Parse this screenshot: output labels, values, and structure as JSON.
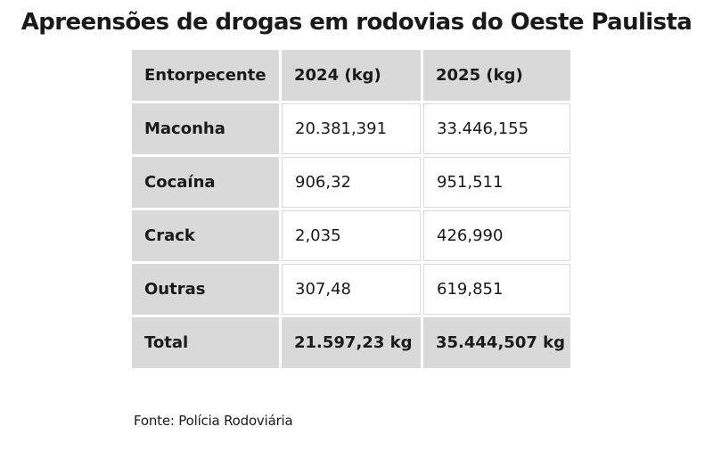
{
  "title": "Apreensões de drogas em rodovias do Oeste Paulista",
  "table": {
    "headers": [
      "Entorpecente",
      "2024 (kg)",
      "2025 (kg)"
    ],
    "rows": [
      [
        "Maconha",
        "20.381,391",
        "33.446,155"
      ],
      [
        "Cocaína",
        "906,32",
        "951,511"
      ],
      [
        "Crack",
        "2,035",
        "426,990"
      ],
      [
        "Outras",
        "307,48",
        "619,851"
      ]
    ],
    "total": [
      "Total",
      "21.597,23 kg",
      "35.444,507 kg"
    ]
  },
  "source": "Fonte: Polícia Rodoviária",
  "colors": {
    "header_bg": "#d9d9d9",
    "cell_bg": "#ffffff",
    "text": "#1a1a1a"
  }
}
